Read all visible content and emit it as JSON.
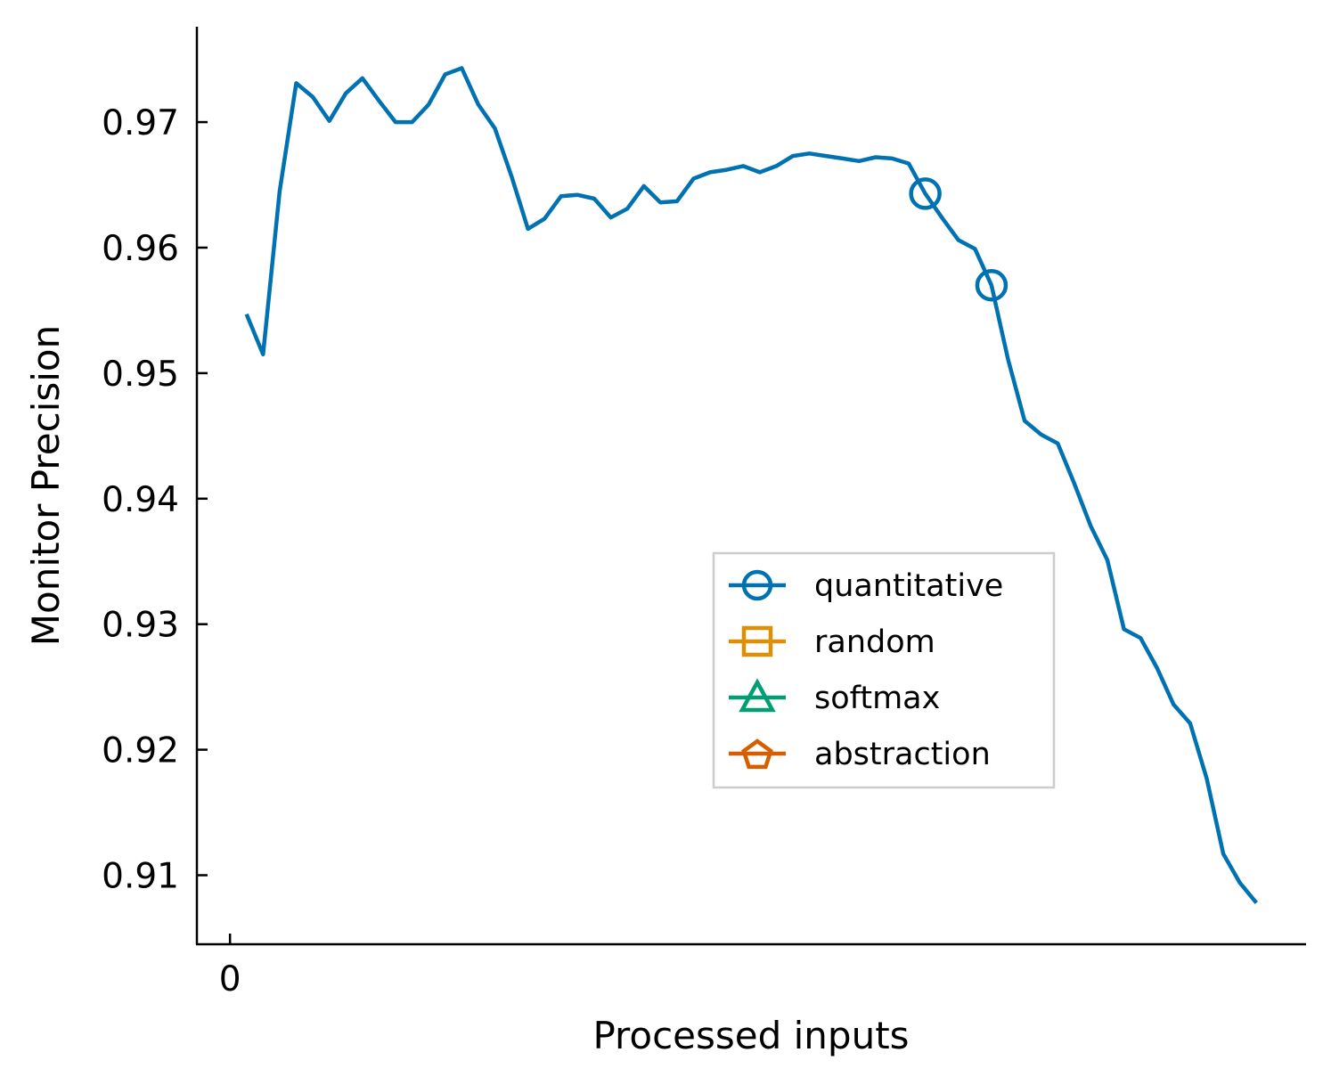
{
  "chart_data": {
    "type": "line",
    "xlabel": "Processed inputs",
    "ylabel": "Monitor Precision",
    "ylim": [
      0.9045,
      0.9776
    ],
    "xlim": [
      -2,
      65
    ],
    "yticks": [
      0.91,
      0.92,
      0.93,
      0.94,
      0.95,
      0.96,
      0.97
    ],
    "ytick_labels": [
      "0.91",
      "0.92",
      "0.93",
      "0.94",
      "0.95",
      "0.96",
      "0.97"
    ],
    "xticks": [
      0
    ],
    "xtick_labels": [
      "0"
    ],
    "grid": false,
    "legend_position": "center-right",
    "series": [
      {
        "name": "quantitative",
        "color": "#0072b2",
        "marker": "circle",
        "x": [
          1,
          2,
          3,
          4,
          5,
          6,
          7,
          8,
          9,
          10,
          11,
          12,
          13,
          14,
          15,
          16,
          17,
          18,
          19,
          20,
          21,
          22,
          23,
          24,
          25,
          26,
          27,
          28,
          29,
          30,
          31,
          32,
          33,
          34,
          35,
          36,
          37,
          38,
          39,
          40,
          41,
          42,
          43,
          44,
          45,
          46,
          47,
          48,
          49,
          50,
          51,
          52,
          53,
          54,
          55,
          56,
          57,
          58,
          59,
          60,
          61,
          62
        ],
        "values": [
          0.9547,
          0.9515,
          0.9645,
          0.9731,
          0.972,
          0.9701,
          0.9723,
          0.9735,
          0.9717,
          0.97,
          0.97,
          0.9714,
          0.9738,
          0.9743,
          0.9714,
          0.9695,
          0.9657,
          0.9615,
          0.9623,
          0.9641,
          0.9642,
          0.9639,
          0.9624,
          0.9631,
          0.9649,
          0.9636,
          0.9637,
          0.9655,
          0.966,
          0.9662,
          0.9665,
          0.966,
          0.9665,
          0.9673,
          0.9675,
          0.9673,
          0.9671,
          0.9669,
          0.9672,
          0.9671,
          0.9667,
          0.9643,
          0.9624,
          0.9606,
          0.9599,
          0.957,
          0.9511,
          0.9462,
          0.9451,
          0.9444,
          0.9412,
          0.9378,
          0.9351,
          0.9296,
          0.9289,
          0.9265,
          0.9236,
          0.9221,
          0.9177,
          0.9117,
          0.9094,
          0.9078
        ],
        "marker_x": [
          42,
          46
        ]
      },
      {
        "name": "random",
        "color": "#de8f05",
        "marker": "square"
      },
      {
        "name": "softmax",
        "color": "#029e73",
        "marker": "triangle"
      },
      {
        "name": "abstraction",
        "color": "#d55e00",
        "marker": "pentagon"
      }
    ]
  }
}
